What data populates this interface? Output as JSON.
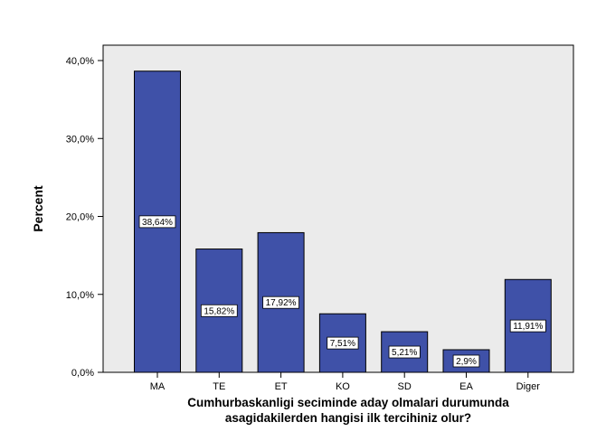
{
  "chart_data": {
    "type": "bar",
    "categories": [
      "MA",
      "TE",
      "ET",
      "KO",
      "SD",
      "EA",
      "Diger"
    ],
    "values": [
      38.64,
      15.82,
      17.92,
      7.51,
      5.21,
      2.9,
      11.91
    ],
    "data_labels": [
      "38,64%",
      "15,82%",
      "17,92%",
      "7,51%",
      "5,21%",
      "2,9%",
      "11,91%"
    ],
    "ylabel": "Percent",
    "xlabel_lines": [
      "Cumhurbaskanligi seciminde aday olmalari durumunda",
      "asagidakilerden hangisi ilk tercihiniz olur?"
    ],
    "yticks": [
      0,
      10,
      20,
      30,
      40
    ],
    "ytick_labels": [
      "0,0%",
      "10,0%",
      "20,0%",
      "30,0%",
      "40,0%"
    ],
    "ylim": [
      0,
      40
    ],
    "grid": false,
    "colors": {
      "bar_fill": "#3F51A8",
      "bar_stroke": "#000000",
      "plot_background": "#EBEBEB",
      "label_box": "#FFFFFF"
    }
  }
}
